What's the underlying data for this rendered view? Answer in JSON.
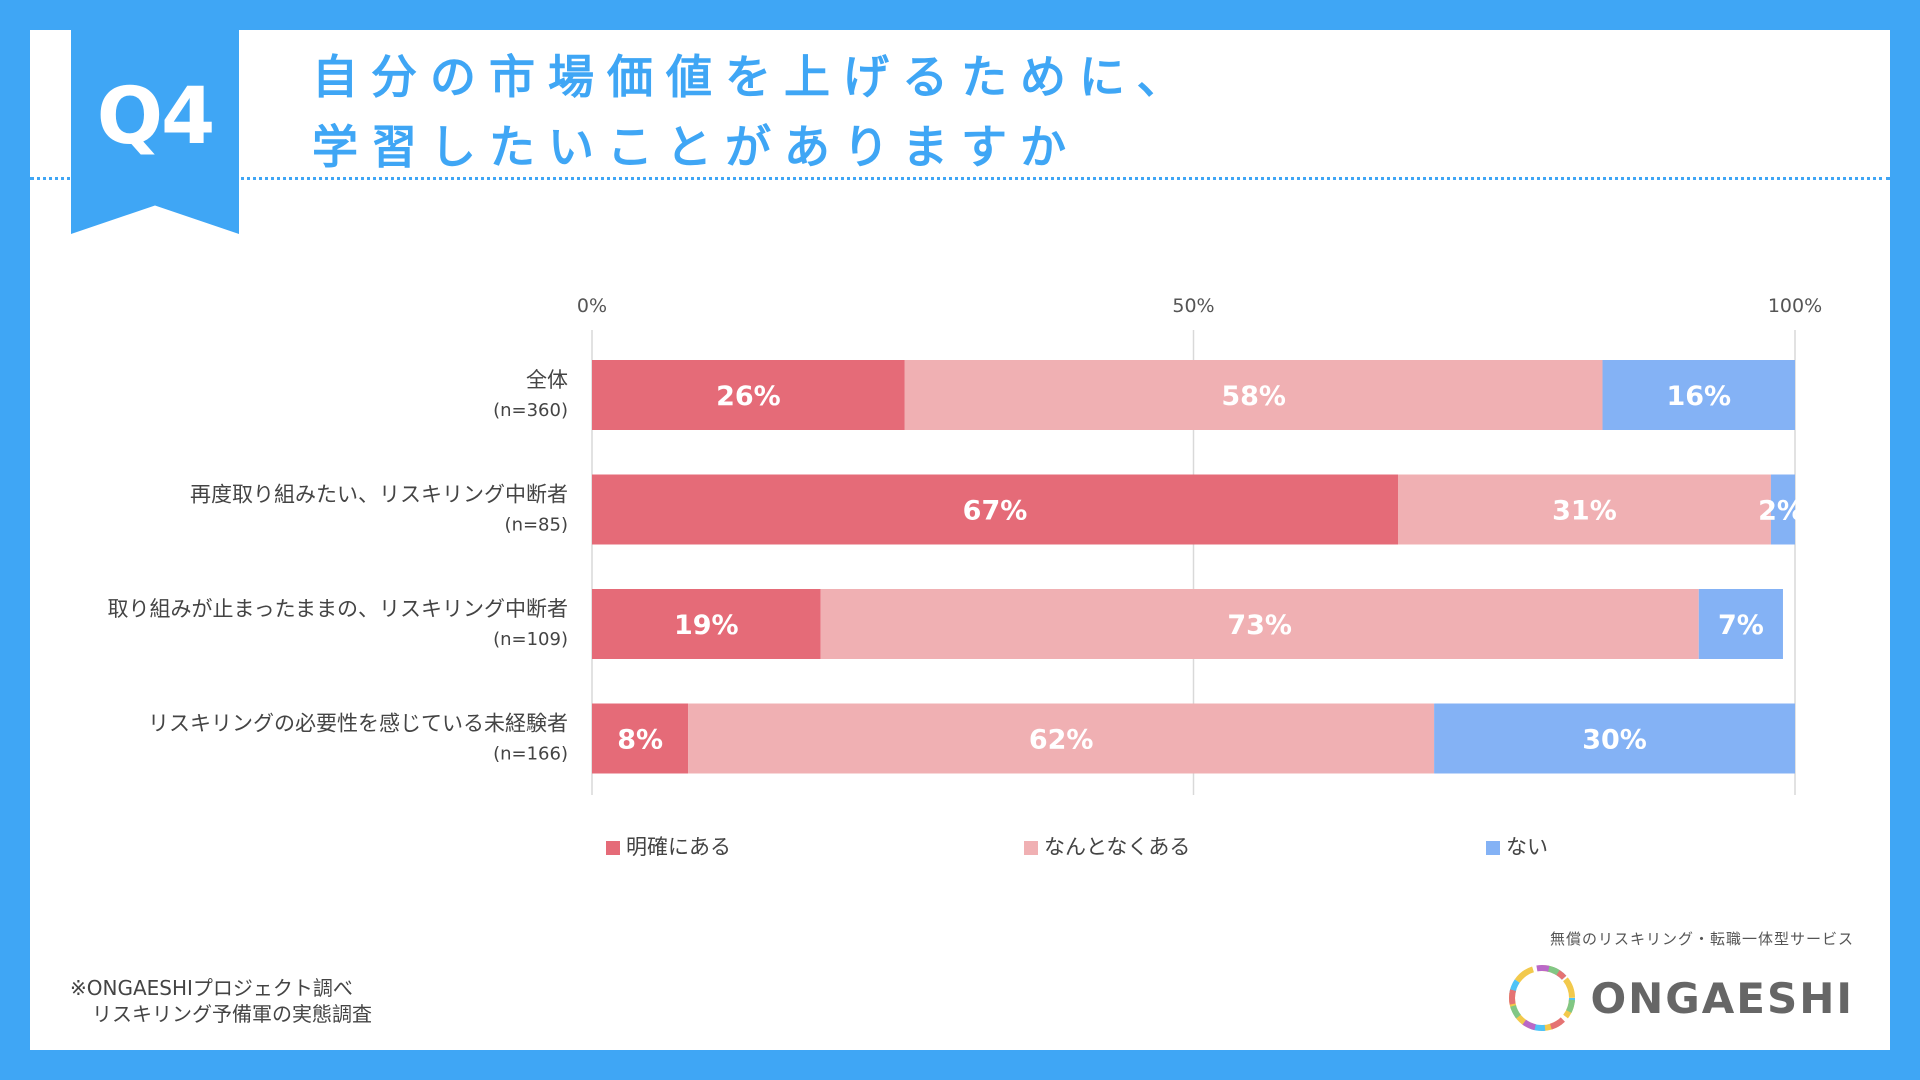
{
  "header": {
    "badge": "Q4",
    "title_line1": "自分の市場価値を上げるために、",
    "title_line2": "学習したいことがありますか"
  },
  "chart_data": {
    "type": "bar",
    "orientation": "horizontal",
    "stacked": true,
    "x_ticks": [
      "0%",
      "50%",
      "100%"
    ],
    "xlim": [
      0,
      100
    ],
    "categories": [
      {
        "label": "全体",
        "n": "(n=360)"
      },
      {
        "label": "再度取り組みたい、リスキリング中断者",
        "n": "(n=85)"
      },
      {
        "label": "取り組みが止まったままの、リスキリング中断者",
        "n": "(n=109)"
      },
      {
        "label": "リスキリングの必要性を感じている未経験者",
        "n": "(n=166)"
      }
    ],
    "series": [
      {
        "name": "明確にある",
        "color": "#e56b78",
        "values": [
          26,
          67,
          19,
          8
        ]
      },
      {
        "name": "なんとなくある",
        "color": "#f0b0b3",
        "values": [
          58,
          31,
          73,
          62
        ]
      },
      {
        "name": "ない",
        "color": "#84b2f5",
        "values": [
          16,
          2,
          7,
          30
        ]
      }
    ],
    "legend_position": "bottom"
  },
  "footer": {
    "source_line1": "※ONGAESHIプロジェクト調べ",
    "source_line2": "リスキリング予備軍の実態調査",
    "tagline": "無償のリスキリング・転職一体型サービス",
    "logo_text": "ONGAESHI"
  }
}
